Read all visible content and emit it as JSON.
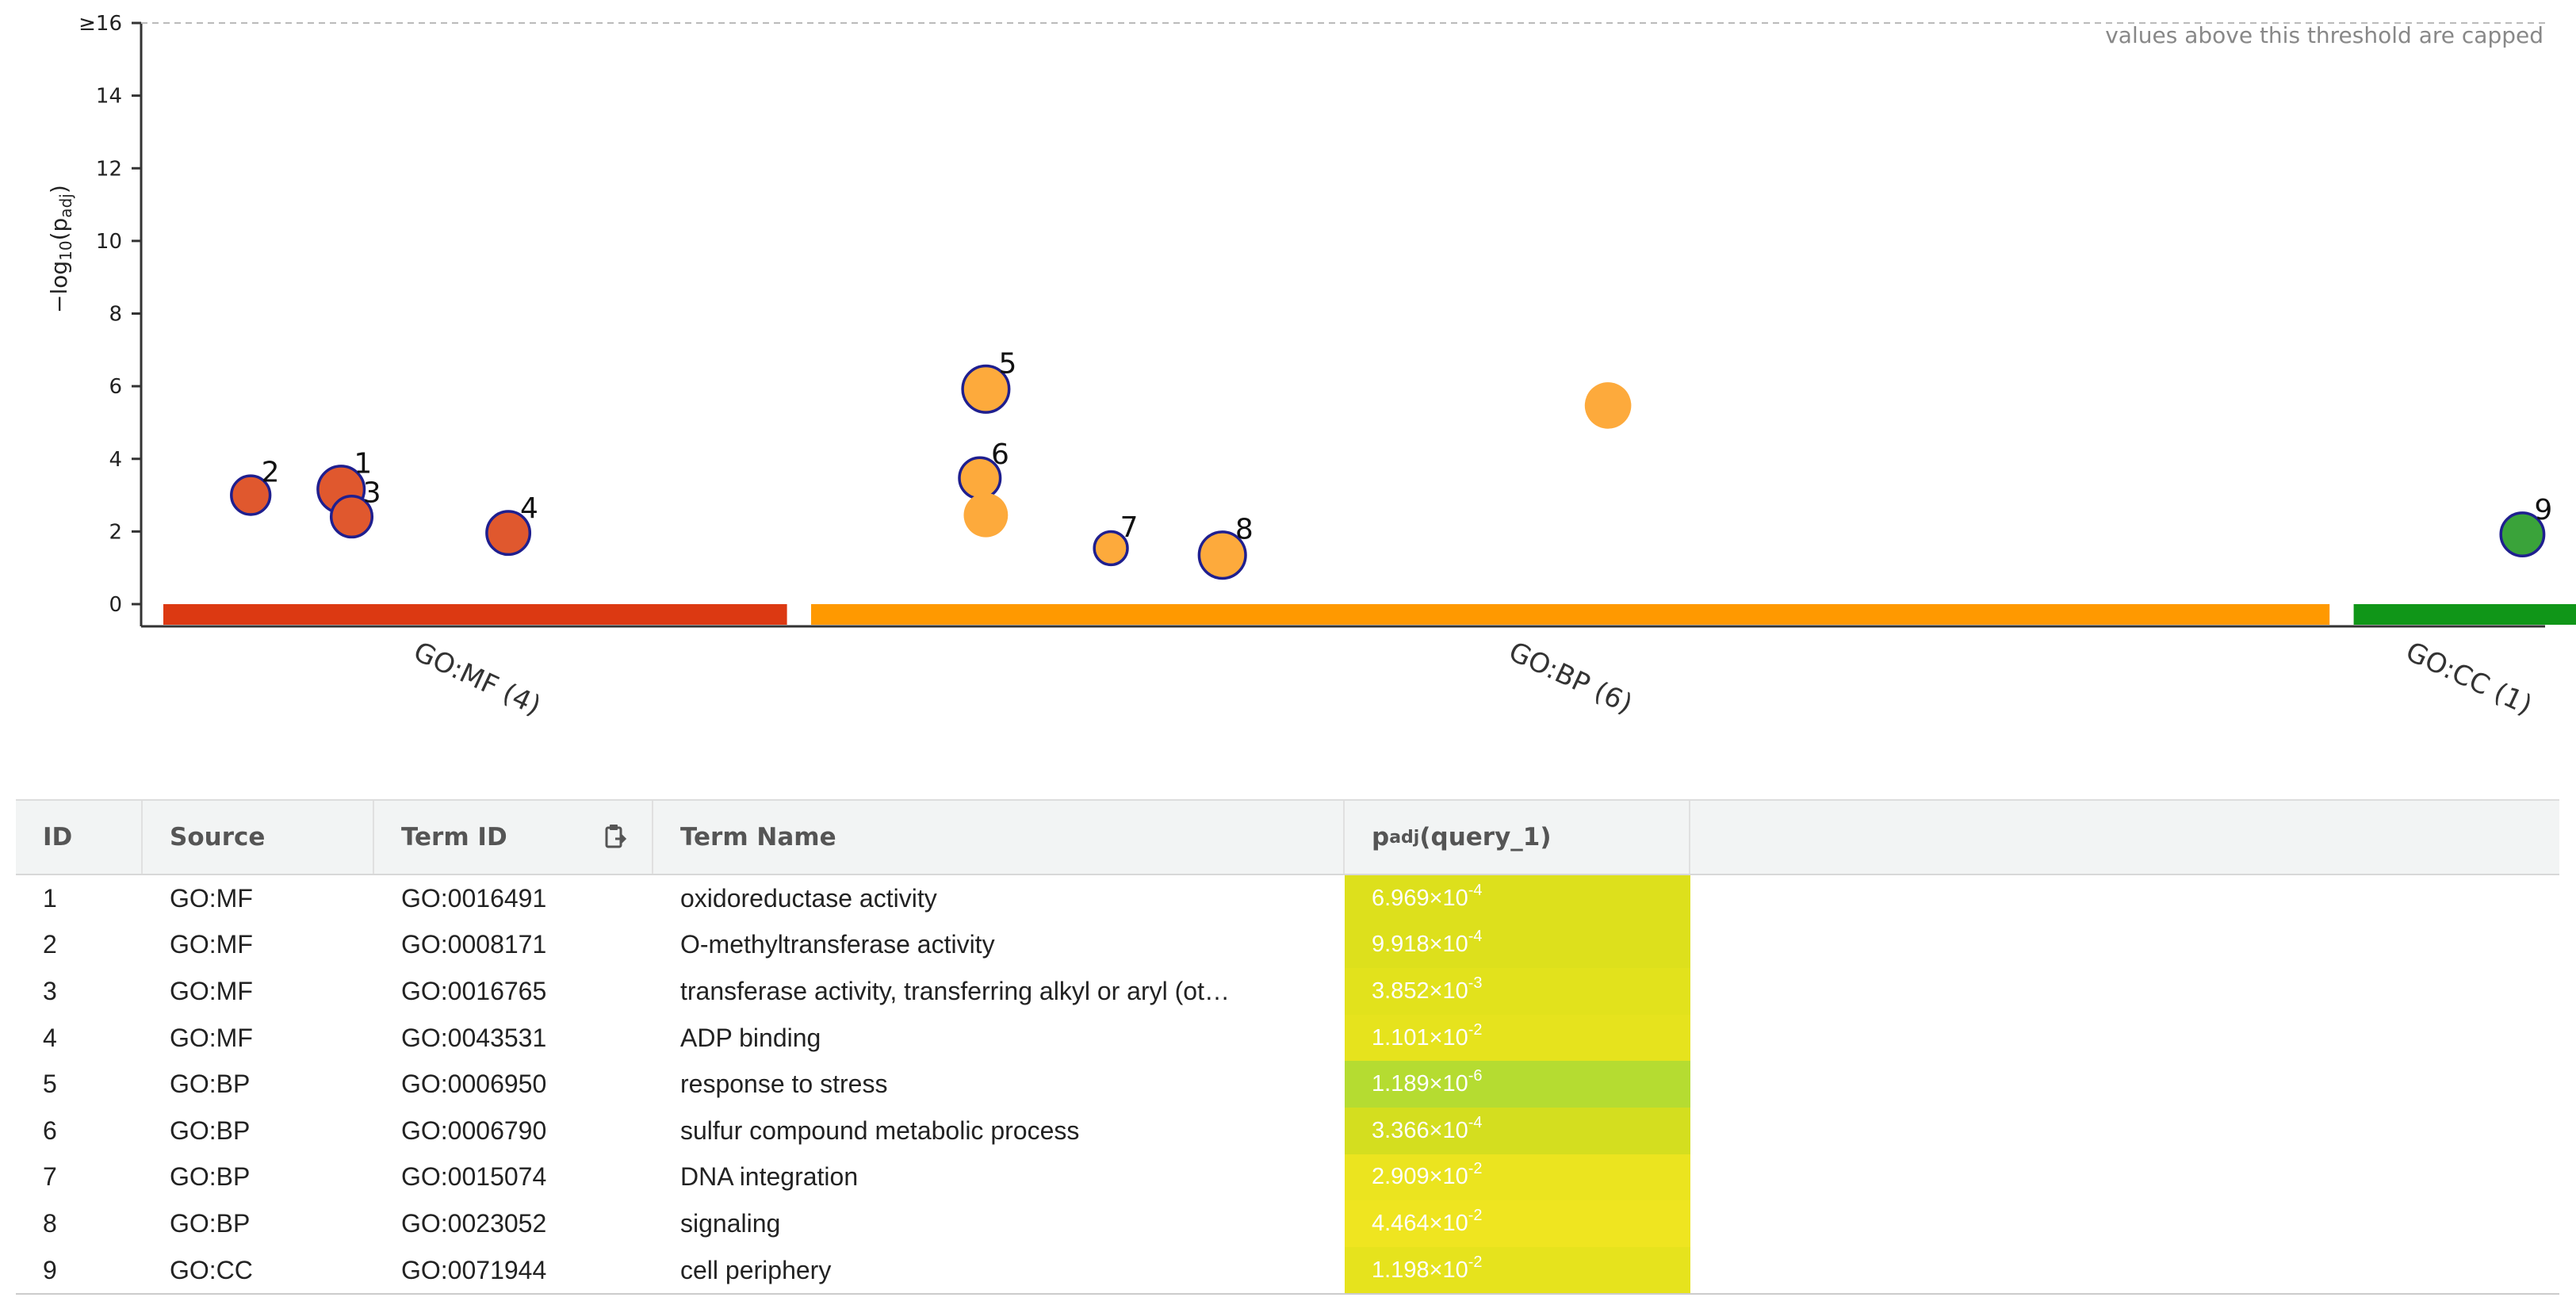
{
  "chart_data": {
    "type": "scatter",
    "title": "",
    "ylabel_main": "−log",
    "ylabel_sub": "10",
    "ylabel_rest": "(p",
    "ylabel_adj": "adj",
    "ylabel_close": ")",
    "ylim": [
      0,
      16
    ],
    "yticks": [
      "0",
      "2",
      "4",
      "6",
      "8",
      "10",
      "12",
      "14",
      "≥16"
    ],
    "cap_note": "values above this threshold are capped",
    "sources": [
      {
        "name": "GO:MF (4)",
        "color": "#dc3912",
        "range": [
          0,
          0.414
        ]
      },
      {
        "name": "GO:BP (6)",
        "color": "#ff9900",
        "range": [
          0.43,
          1.438
        ]
      },
      {
        "name": "GO:CC (1)",
        "color": "#109618",
        "range": [
          1.454,
          1.605
        ]
      }
    ],
    "points": [
      {
        "label": "2",
        "source": "GO:MF",
        "x": 0.058,
        "y": 3.0,
        "size": 0.6,
        "color": "#e0582e",
        "highlighted": true
      },
      {
        "label": "1",
        "source": "GO:MF",
        "x": 0.118,
        "y": 3.16,
        "size": 0.95,
        "color": "#e0582e",
        "highlighted": true
      },
      {
        "label": "3",
        "source": "GO:MF",
        "x": 0.125,
        "y": 2.41,
        "size": 0.7,
        "color": "#e0582e",
        "highlighted": true
      },
      {
        "label": "4",
        "source": "GO:MF",
        "x": 0.229,
        "y": 1.96,
        "size": 0.8,
        "color": "#e0582e",
        "highlighted": true
      },
      {
        "label": "5",
        "source": "GO:BP",
        "x": 0.546,
        "y": 5.92,
        "size": 0.95,
        "color": "#fdaa3c",
        "highlighted": true
      },
      {
        "label": "6",
        "source": "GO:BP",
        "x": 0.542,
        "y": 3.47,
        "size": 0.7,
        "color": "#fdaa3c",
        "highlighted": true
      },
      {
        "label": "",
        "source": "GO:BP",
        "x": 0.546,
        "y": 2.45,
        "size": 0.85,
        "color": "#fdaa3c",
        "highlighted": false
      },
      {
        "label": "7",
        "source": "GO:BP",
        "x": 0.629,
        "y": 1.54,
        "size": 0.35,
        "color": "#fdaa3c",
        "highlighted": true
      },
      {
        "label": "8",
        "source": "GO:BP",
        "x": 0.703,
        "y": 1.35,
        "size": 0.95,
        "color": "#fdaa3c",
        "highlighted": true
      },
      {
        "label": "",
        "source": "GO:BP",
        "x": 0.959,
        "y": 5.47,
        "size": 0.95,
        "color": "#fdaa3c",
        "highlighted": false
      },
      {
        "label": "9",
        "source": "GO:CC",
        "x": 1.566,
        "y": 1.92,
        "size": 0.8,
        "color": "#3aa33a",
        "highlighted": true
      }
    ]
  },
  "table": {
    "headers": {
      "id": "ID",
      "source": "Source",
      "term_id": "Term ID",
      "term_name": "Term Name",
      "padj_main": "p",
      "padj_sub": "adj",
      "padj_query": " (query_1)"
    },
    "rows": [
      {
        "id": "1",
        "source": "GO:MF",
        "term_id": "GO:0016491",
        "term_name": "oxidoreductase activity",
        "mantissa": "6.969×10",
        "exp": "-4",
        "color": "#dde01c"
      },
      {
        "id": "2",
        "source": "GO:MF",
        "term_id": "GO:0008171",
        "term_name": "O-methyltransferase activity",
        "mantissa": "9.918×10",
        "exp": "-4",
        "color": "#dde01c"
      },
      {
        "id": "3",
        "source": "GO:MF",
        "term_id": "GO:0016765",
        "term_name": "transferase activity, transferring alkyl or aryl (ot…",
        "mantissa": "3.852×10",
        "exp": "-3",
        "color": "#e2e21c"
      },
      {
        "id": "4",
        "source": "GO:MF",
        "term_id": "GO:0043531",
        "term_name": "ADP binding",
        "mantissa": "1.101×10",
        "exp": "-2",
        "color": "#e6e31d"
      },
      {
        "id": "5",
        "source": "GO:BP",
        "term_id": "GO:0006950",
        "term_name": "response to stress",
        "mantissa": "1.189×10",
        "exp": "-6",
        "color": "#b5dc31"
      },
      {
        "id": "6",
        "source": "GO:BP",
        "term_id": "GO:0006790",
        "term_name": "sulfur compound metabolic process",
        "mantissa": "3.366×10",
        "exp": "-4",
        "color": "#d4de1f"
      },
      {
        "id": "7",
        "source": "GO:BP",
        "term_id": "GO:0015074",
        "term_name": "DNA integration",
        "mantissa": "2.909×10",
        "exp": "-2",
        "color": "#ebe41f"
      },
      {
        "id": "8",
        "source": "GO:BP",
        "term_id": "GO:0023052",
        "term_name": "signaling",
        "mantissa": "4.464×10",
        "exp": "-2",
        "color": "#efe520"
      },
      {
        "id": "9",
        "source": "GO:CC",
        "term_id": "GO:0071944",
        "term_name": "cell periphery",
        "mantissa": "1.198×10",
        "exp": "-2",
        "color": "#e6e31d"
      }
    ]
  }
}
